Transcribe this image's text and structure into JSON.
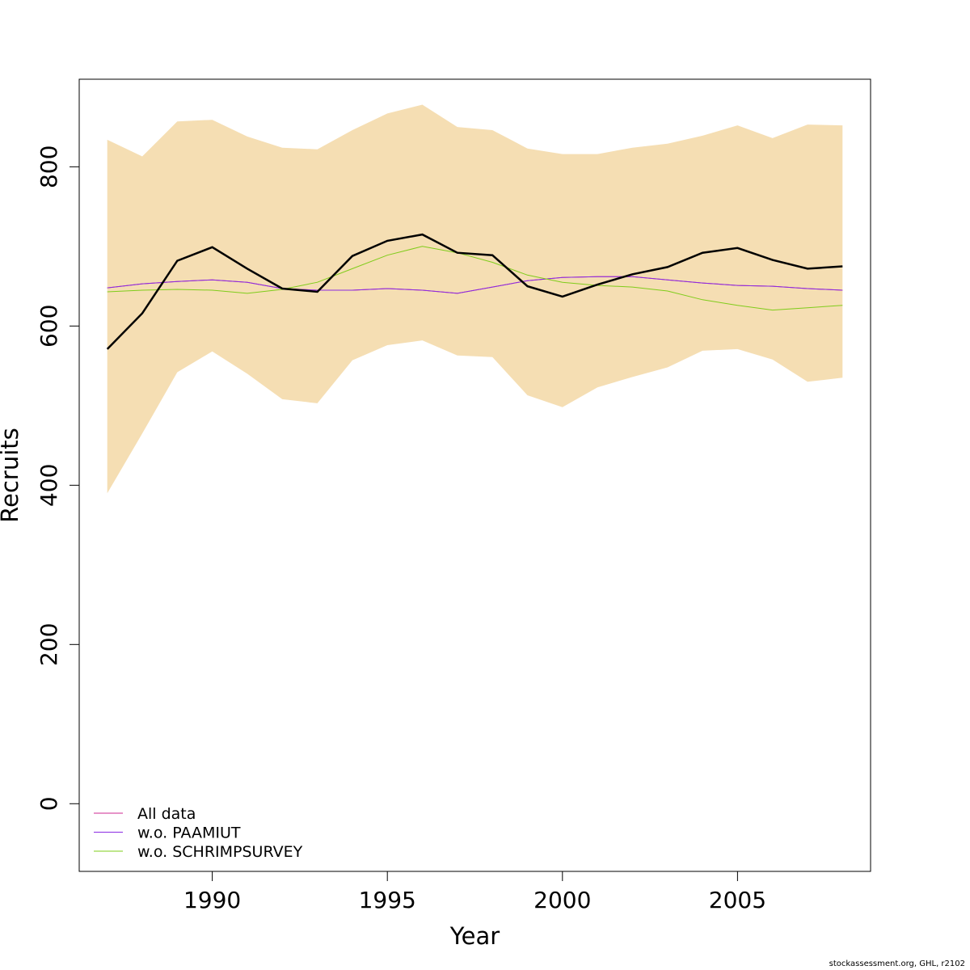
{
  "chart_data": {
    "type": "line",
    "title": "",
    "xlabel": "Year",
    "ylabel": "Recruits",
    "xlim": [
      1986.2,
      2008.8
    ],
    "ylim": [
      -85,
      910
    ],
    "x_ticks": [
      1990,
      1995,
      2000,
      2005
    ],
    "y_ticks": [
      0,
      200,
      400,
      600,
      800
    ],
    "x": [
      1987,
      1988,
      1989,
      1990,
      1991,
      1992,
      1993,
      1994,
      1995,
      1996,
      1997,
      1998,
      1999,
      2000,
      2001,
      2002,
      2003,
      2004,
      2005,
      2006,
      2007,
      2008
    ],
    "confidence_band": {
      "color": "#F5DEB3",
      "lower": [
        390,
        465,
        542,
        568,
        540,
        508,
        503,
        557,
        576,
        582,
        563,
        561,
        513,
        498,
        523,
        536,
        548,
        569,
        571,
        558,
        530,
        535
      ],
      "upper": [
        834,
        813,
        857,
        859,
        838,
        824,
        822,
        846,
        867,
        878,
        850,
        846,
        823,
        816,
        816,
        824,
        829,
        839,
        852,
        836,
        853,
        852
      ]
    },
    "estimate": {
      "color": "#000000",
      "values": [
        571,
        616,
        682,
        699,
        672,
        647,
        643,
        688,
        707,
        715,
        692,
        689,
        650,
        637,
        652,
        665,
        674,
        692,
        698,
        683,
        672,
        675
      ]
    },
    "series": [
      {
        "name": "All data",
        "color": "#CD2990",
        "values": [
          648,
          653,
          656,
          658,
          655,
          647,
          645,
          645,
          647,
          645,
          641,
          649,
          657,
          661,
          662,
          662,
          658,
          654,
          651,
          650,
          647,
          645
        ]
      },
      {
        "name": "w.o. PAAMIUT",
        "color": "#8A2BE2",
        "values": [
          648,
          653,
          656,
          658,
          655,
          647,
          645,
          645,
          647,
          645,
          641,
          649,
          657,
          661,
          662,
          662,
          658,
          654,
          651,
          650,
          647,
          645
        ]
      },
      {
        "name": "w.o. SCHRIMPSURVEY",
        "color": "#7FCC1A",
        "values": [
          643,
          645,
          646,
          645,
          641,
          646,
          655,
          672,
          689,
          700,
          692,
          680,
          664,
          655,
          651,
          649,
          644,
          633,
          626,
          620,
          623,
          626
        ]
      }
    ],
    "legend_position": "bottom-left",
    "grid": false
  },
  "footer": "stockassessment.org, GHL, r2102"
}
